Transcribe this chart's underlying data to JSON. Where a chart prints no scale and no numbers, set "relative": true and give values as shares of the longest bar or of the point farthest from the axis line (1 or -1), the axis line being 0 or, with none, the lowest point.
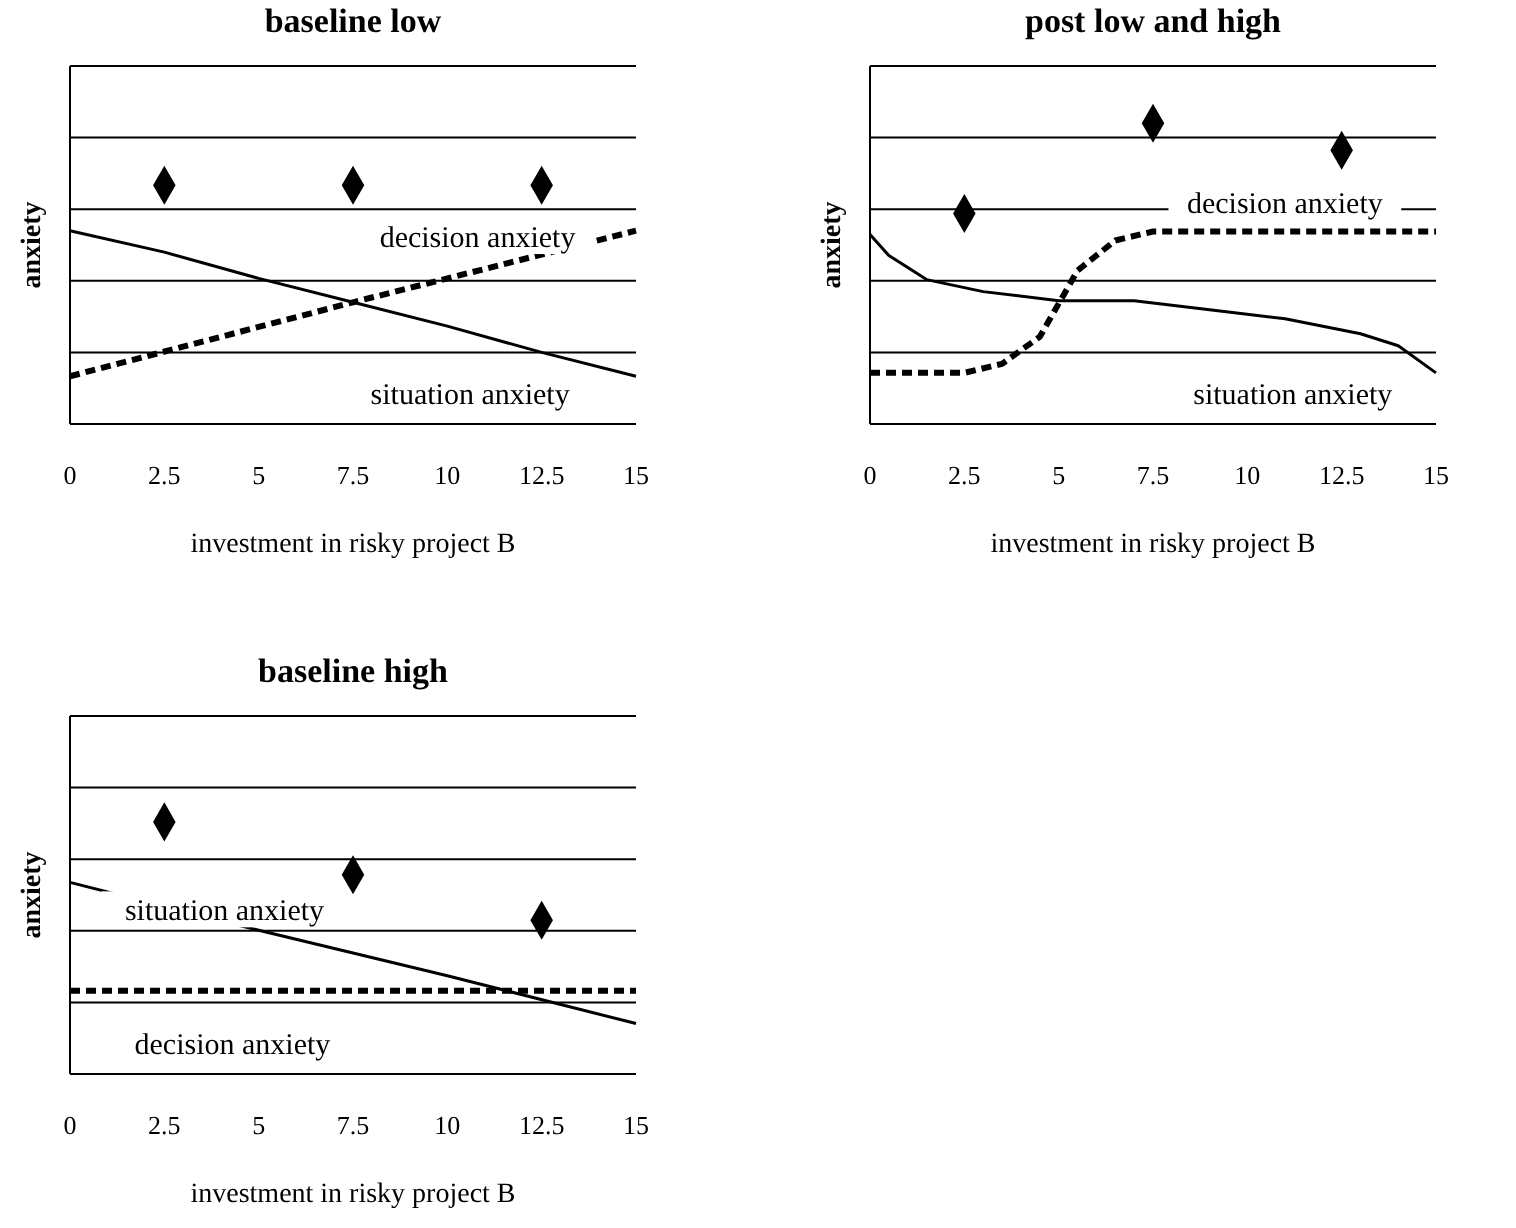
{
  "chart_data": [
    {
      "type": "line",
      "title": "baseline low",
      "xlabel": "investment in risky project B",
      "ylabel": "anxiety",
      "relative": true,
      "grid": "y",
      "xlim": [
        0,
        15
      ],
      "xticks": [
        0,
        2.5,
        5,
        7.5,
        10,
        12.5,
        15
      ],
      "series": [
        {
          "type": "scatter",
          "marker": "diamond",
          "color": "#000000",
          "x": [
            2.5,
            7.5,
            12.5
          ],
          "values": [
            1,
            1,
            1
          ]
        },
        {
          "line_style": "solid",
          "color": "#000000",
          "x": [
            0,
            2.5,
            5,
            7.5,
            10,
            12.5,
            15
          ],
          "values": [
            0.81,
            0.72,
            0.61,
            0.51,
            0.41,
            0.3,
            0.2
          ]
        },
        {
          "line_style": "dashed",
          "color": "#000000",
          "x": [
            0,
            7.5,
            15
          ],
          "values": [
            0.2,
            0.51,
            0.81
          ]
        }
      ],
      "annotations": [
        "decision anxiety",
        "situation anxiety"
      ]
    },
    {
      "type": "line",
      "title": "post low and high",
      "xlabel": "investment in risky project B",
      "ylabel": "anxiety",
      "relative": true,
      "grid": "y",
      "xlim": [
        0,
        15
      ],
      "xticks": [
        0,
        2.5,
        5,
        7.5,
        10,
        12.5,
        15
      ],
      "series": [
        {
          "type": "scatter",
          "marker": "diamond",
          "color": "#000000",
          "x": [
            2.5,
            7.5,
            12.5
          ],
          "values": [
            0.7,
            1,
            0.91
          ]
        },
        {
          "line_style": "solid",
          "color": "#000000",
          "x": [
            0,
            0.5,
            1.5,
            3,
            5,
            7,
            9,
            11,
            13,
            14,
            15
          ],
          "values": [
            0.63,
            0.56,
            0.48,
            0.44,
            0.41,
            0.41,
            0.38,
            0.35,
            0.3,
            0.26,
            0.17
          ]
        },
        {
          "line_style": "dashed",
          "color": "#000000",
          "x": [
            0,
            2.5,
            3.5,
            4.5,
            5.5,
            6.5,
            7.5,
            15
          ],
          "values": [
            0.17,
            0.17,
            0.2,
            0.29,
            0.51,
            0.61,
            0.64,
            0.64
          ]
        }
      ],
      "annotations": [
        "decision anxiety",
        "situation anxiety"
      ]
    },
    {
      "type": "line",
      "title": "baseline high",
      "xlabel": "investment in risky project B",
      "ylabel": "anxiety",
      "relative": true,
      "grid": "y",
      "xlim": [
        0,
        15
      ],
      "xticks": [
        0,
        2.5,
        5,
        7.5,
        10,
        12.5,
        15
      ],
      "series": [
        {
          "type": "scatter",
          "marker": "diamond",
          "color": "#000000",
          "x": [
            2.5,
            7.5,
            12.5
          ],
          "values": [
            1,
            0.79,
            0.61
          ]
        },
        {
          "line_style": "solid",
          "color": "#000000",
          "x": [
            0,
            5,
            10,
            15
          ],
          "values": [
            0.76,
            0.57,
            0.39,
            0.2
          ]
        },
        {
          "line_style": "dashed",
          "color": "#000000",
          "x": [
            0,
            15
          ],
          "values": [
            0.33,
            0.33
          ]
        }
      ],
      "annotations": [
        "situation anxiety",
        "decision anxiety"
      ]
    }
  ]
}
